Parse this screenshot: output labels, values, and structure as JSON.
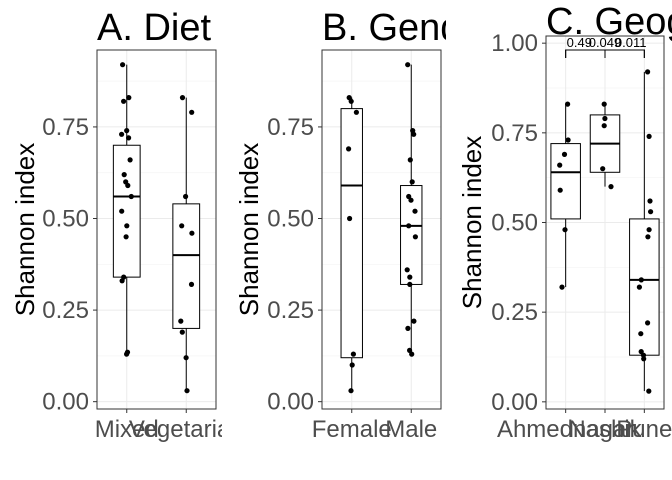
{
  "chart_data": [
    {
      "type": "box",
      "title": "A. Diet",
      "ylabel": "Shannon index",
      "xlabel": "",
      "ylim": [
        -0.02,
        0.96
      ],
      "yticks": [
        "0.00",
        "0.25",
        "0.50",
        "0.75"
      ],
      "categories": [
        "Mixed",
        "Vegetarian"
      ],
      "boxes": [
        {
          "category": "Mixed",
          "q1": 0.34,
          "median": 0.56,
          "q3": 0.7,
          "whisker_low": 0.13,
          "whisker_high": 0.92,
          "points": [
            0.13,
            0.135,
            0.33,
            0.34,
            0.45,
            0.48,
            0.52,
            0.56,
            0.59,
            0.6,
            0.62,
            0.66,
            0.72,
            0.73,
            0.74,
            0.82,
            0.83,
            0.92
          ]
        },
        {
          "category": "Vegetarian",
          "q1": 0.2,
          "median": 0.4,
          "q3": 0.54,
          "whisker_low": 0.03,
          "whisker_high": 0.83,
          "points": [
            0.03,
            0.12,
            0.19,
            0.22,
            0.32,
            0.46,
            0.48,
            0.56,
            0.79,
            0.83
          ]
        }
      ]
    },
    {
      "type": "box",
      "title": "B. Gender",
      "ylabel": "Shannon index",
      "xlabel": "",
      "ylim": [
        -0.02,
        0.96
      ],
      "yticks": [
        "0.00",
        "0.25",
        "0.50",
        "0.75"
      ],
      "categories": [
        "Female",
        "Male"
      ],
      "boxes": [
        {
          "category": "Female",
          "q1": 0.12,
          "median": 0.59,
          "q3": 0.8,
          "whisker_low": 0.03,
          "whisker_high": 0.83,
          "points": [
            0.03,
            0.1,
            0.13,
            0.5,
            0.69,
            0.79,
            0.82,
            0.83
          ]
        },
        {
          "category": "Male",
          "q1": 0.32,
          "median": 0.48,
          "q3": 0.59,
          "whisker_low": 0.13,
          "whisker_high": 0.92,
          "points": [
            0.13,
            0.14,
            0.2,
            0.22,
            0.32,
            0.34,
            0.36,
            0.45,
            0.48,
            0.52,
            0.55,
            0.56,
            0.6,
            0.66,
            0.73,
            0.74,
            0.92
          ]
        }
      ]
    },
    {
      "type": "box",
      "title": "C. Geography",
      "ylabel": "Shannon index",
      "xlabel": "",
      "ylim": [
        -0.02,
        1.02
      ],
      "yticks": [
        "0.00",
        "0.25",
        "0.50",
        "0.75",
        "1.00"
      ],
      "categories": [
        "Ahmednagar",
        "Nashik",
        "Pune"
      ],
      "annotations": [
        "0.49",
        "0.049",
        "0.011"
      ],
      "boxes": [
        {
          "category": "Ahmednagar",
          "q1": 0.51,
          "median": 0.64,
          "q3": 0.72,
          "whisker_low": 0.32,
          "whisker_high": 0.83,
          "points": [
            0.32,
            0.48,
            0.59,
            0.66,
            0.69,
            0.73,
            0.83
          ]
        },
        {
          "category": "Nashik",
          "q1": 0.64,
          "median": 0.72,
          "q3": 0.8,
          "whisker_low": 0.6,
          "whisker_high": 0.83,
          "points": [
            0.6,
            0.65,
            0.77,
            0.79,
            0.83
          ]
        },
        {
          "category": "Pune",
          "q1": 0.13,
          "median": 0.34,
          "q3": 0.51,
          "whisker_low": 0.03,
          "whisker_high": 0.92,
          "points": [
            0.03,
            0.12,
            0.13,
            0.14,
            0.19,
            0.22,
            0.32,
            0.34,
            0.46,
            0.48,
            0.53,
            0.56,
            0.74,
            0.92
          ]
        }
      ]
    }
  ]
}
